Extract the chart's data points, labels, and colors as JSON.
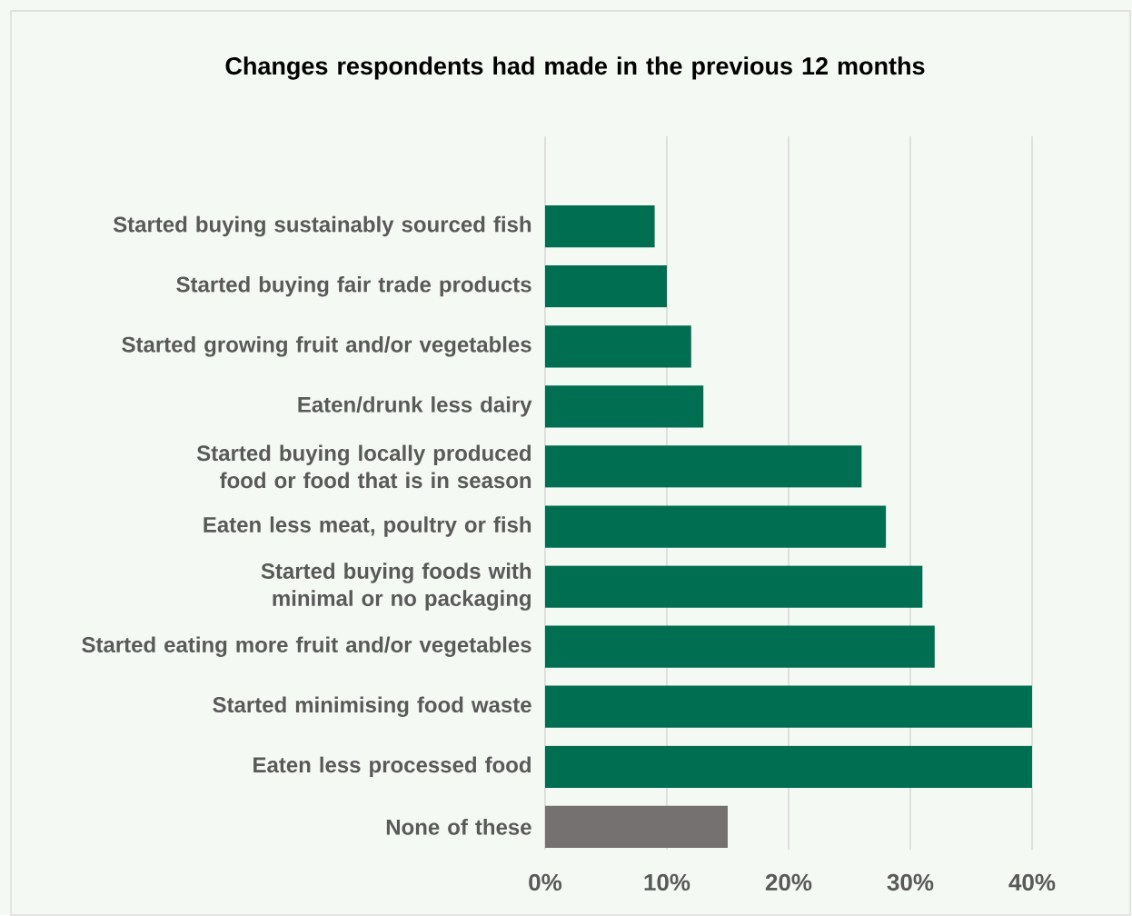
{
  "chart_data": {
    "type": "bar",
    "orientation": "horizontal",
    "title": "Changes respondents had made in the previous 12 months",
    "categories": [
      "Started buying sustainably sourced fish",
      "Started buying fair trade products",
      "Started growing fruit and/or vegetables",
      "Eaten/drunk less dairy",
      "Started buying locally produced food or food that is in season",
      "Eaten less meat, poultry or fish",
      "Started buying foods with minimal or no packaging",
      "Started eating more fruit and/or vegetables",
      "Started minimising food waste",
      "Eaten less processed food",
      "None of these"
    ],
    "values": [
      9,
      10,
      12,
      13,
      26,
      28,
      31,
      32,
      40,
      40,
      15
    ],
    "colors": [
      "#006e51",
      "#006e51",
      "#006e51",
      "#006e51",
      "#006e51",
      "#006e51",
      "#006e51",
      "#006e51",
      "#006e51",
      "#006e51",
      "#767171"
    ],
    "xlim": [
      0,
      40
    ],
    "xticks": [
      {
        "value": 0,
        "label": "0%"
      },
      {
        "value": 10,
        "label": "10%"
      },
      {
        "value": 20,
        "label": "20%"
      },
      {
        "value": 30,
        "label": "30%"
      },
      {
        "value": 40,
        "label": "40%"
      }
    ],
    "grid": "x"
  }
}
